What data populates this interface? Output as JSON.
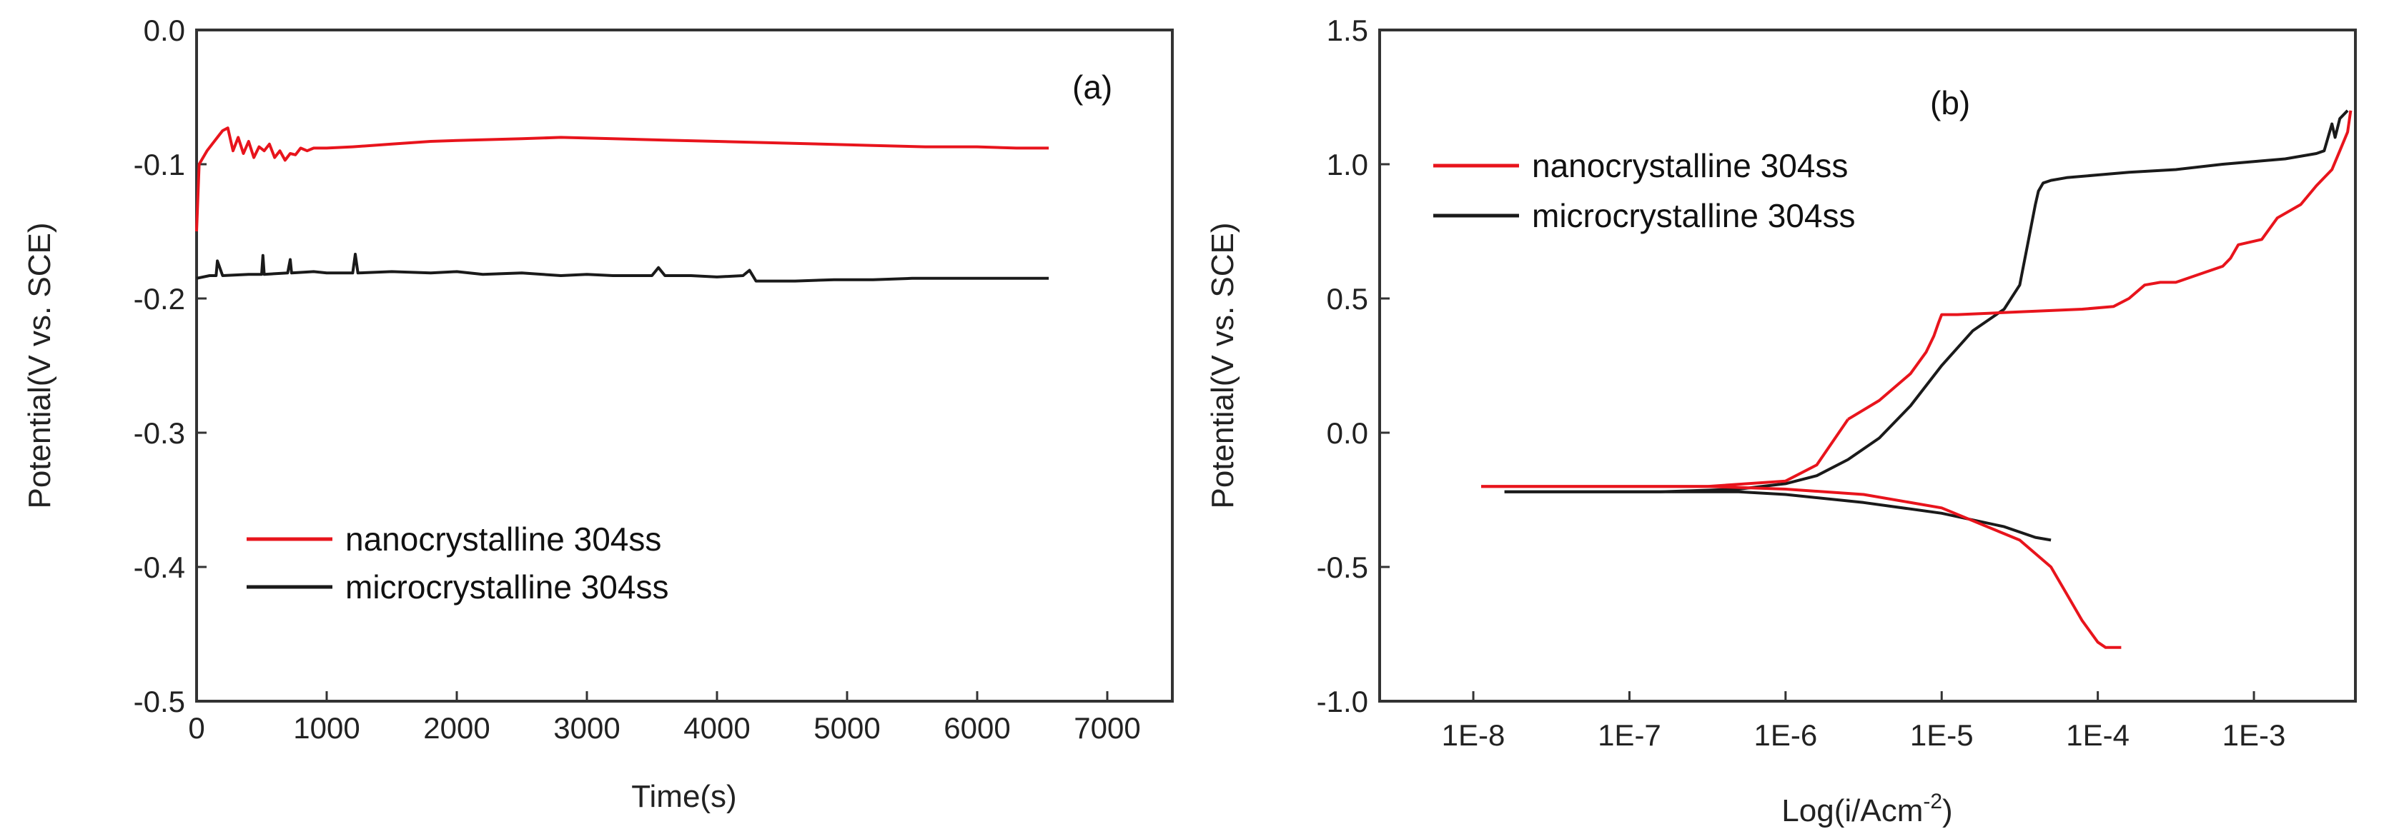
{
  "chart_data": [
    {
      "type": "line",
      "panel_label": "(a)",
      "xlabel": "Time(s)",
      "ylabel": "Potential(V vs. SCE)",
      "xlim": [
        0,
        7500
      ],
      "ylim": [
        -0.5,
        0.0
      ],
      "xticks": [
        0,
        1000,
        2000,
        3000,
        4000,
        5000,
        6000,
        7000
      ],
      "xtick_labels": [
        "0",
        "1000",
        "2000",
        "3000",
        "4000",
        "5000",
        "6000",
        "7000"
      ],
      "yticks": [
        0.0,
        -0.1,
        -0.2,
        -0.3,
        -0.4,
        -0.5
      ],
      "ytick_labels": [
        "0.0",
        "-0.1",
        "-0.2",
        "-0.3",
        "-0.4",
        "-0.5"
      ],
      "legend_position": "lower-left",
      "series": [
        {
          "name": "nanocrystalline 304ss",
          "color": "#e8141c",
          "x": [
            0,
            20,
            50,
            80,
            120,
            160,
            200,
            240,
            280,
            320,
            360,
            400,
            440,
            480,
            520,
            560,
            600,
            640,
            680,
            720,
            760,
            800,
            850,
            900,
            1000,
            1200,
            1500,
            1800,
            2100,
            2500,
            2800,
            3200,
            3600,
            4000,
            4400,
            4800,
            5200,
            5600,
            6000,
            6300,
            6550
          ],
          "y": [
            -0.15,
            -0.1,
            -0.095,
            -0.09,
            -0.085,
            -0.08,
            -0.075,
            -0.073,
            -0.09,
            -0.08,
            -0.092,
            -0.083,
            -0.095,
            -0.087,
            -0.09,
            -0.085,
            -0.095,
            -0.09,
            -0.097,
            -0.092,
            -0.093,
            -0.088,
            -0.09,
            -0.088,
            -0.088,
            -0.087,
            -0.085,
            -0.083,
            -0.082,
            -0.081,
            -0.08,
            -0.081,
            -0.082,
            -0.083,
            -0.084,
            -0.085,
            -0.086,
            -0.087,
            -0.087,
            -0.088,
            -0.088
          ]
        },
        {
          "name": "microcrystalline 304ss",
          "color": "#1a1a1a",
          "x": [
            0,
            100,
            150,
            160,
            200,
            400,
            500,
            510,
            520,
            700,
            720,
            730,
            900,
            1000,
            1200,
            1220,
            1240,
            1500,
            1800,
            2000,
            2200,
            2500,
            2800,
            3000,
            3200,
            3500,
            3550,
            3600,
            3800,
            4000,
            4200,
            4250,
            4300,
            4600,
            4900,
            5200,
            5500,
            5800,
            6200,
            6550
          ],
          "y": [
            -0.185,
            -0.183,
            -0.183,
            -0.172,
            -0.183,
            -0.182,
            -0.182,
            -0.168,
            -0.182,
            -0.181,
            -0.171,
            -0.181,
            -0.18,
            -0.181,
            -0.181,
            -0.167,
            -0.181,
            -0.18,
            -0.181,
            -0.18,
            -0.182,
            -0.181,
            -0.183,
            -0.182,
            -0.183,
            -0.183,
            -0.177,
            -0.183,
            -0.183,
            -0.184,
            -0.183,
            -0.179,
            -0.187,
            -0.187,
            -0.186,
            -0.186,
            -0.185,
            -0.185,
            -0.185,
            -0.185
          ]
        }
      ]
    },
    {
      "type": "line",
      "panel_label": "(b)",
      "xlabel": "Log(i/Acm",
      "xlabel_superscript": "-2",
      "xlabel_close": ")",
      "ylabel": "Potential(V vs. SCE)",
      "xscale": "log",
      "xlim_log10": [
        -8.6,
        -2.35
      ],
      "ylim": [
        -1.0,
        1.5
      ],
      "xticks_log10": [
        -8,
        -7,
        -6,
        -5,
        -4,
        -3
      ],
      "xtick_labels": [
        "1E-8",
        "1E-7",
        "1E-6",
        "1E-5",
        "1E-4",
        "1E-3"
      ],
      "yticks": [
        1.5,
        1.0,
        0.5,
        0.0,
        -0.5,
        -1.0
      ],
      "ytick_labels": [
        "1.5",
        "1.0",
        "0.5",
        "0.0",
        "-0.5",
        "-1.0"
      ],
      "legend_position": "upper-left",
      "series": [
        {
          "name": "nanocrystalline 304ss",
          "color": "#e8141c",
          "x_log10": [
            -5.6,
            -5.4,
            -5.2,
            -5.1,
            -5.05,
            -5.02,
            -5.0,
            -4.9,
            -4.7,
            -4.5,
            -4.3,
            -4.1,
            -3.9,
            -3.8,
            -3.7,
            -3.6,
            -3.5,
            -3.4,
            -3.3,
            -3.2,
            -3.15,
            -3.1,
            -2.95,
            -2.85,
            -2.7,
            -2.6,
            -2.5,
            -2.45,
            -2.4,
            -2.38
          ],
          "y": [
            0.05,
            0.12,
            0.22,
            0.3,
            0.36,
            0.41,
            0.44,
            0.44,
            0.445,
            0.45,
            0.455,
            0.46,
            0.47,
            0.5,
            0.55,
            0.56,
            0.56,
            0.58,
            0.6,
            0.62,
            0.65,
            0.7,
            0.72,
            0.8,
            0.85,
            0.92,
            0.98,
            1.05,
            1.12,
            1.2
          ],
          "cathodic_x_log10": [
            -7.95,
            -7.5,
            -7.0,
            -6.5,
            -6.0,
            -5.5,
            -5.0,
            -4.5,
            -4.3,
            -4.2,
            -4.1,
            -4.0,
            -3.95,
            -3.85
          ],
          "cathodic_y": [
            -0.2,
            -0.2,
            -0.2,
            -0.2,
            -0.21,
            -0.23,
            -0.28,
            -0.4,
            -0.5,
            -0.6,
            -0.7,
            -0.78,
            -0.8,
            -0.8
          ],
          "anodic_lower_x_log10": [
            -7.95,
            -7.5,
            -7.0,
            -6.5,
            -6.0,
            -5.8,
            -5.6
          ],
          "anodic_lower_y": [
            -0.2,
            -0.2,
            -0.2,
            -0.2,
            -0.18,
            -0.12,
            0.05
          ]
        },
        {
          "name": "microcrystalline 304ss",
          "color": "#1a1a1a",
          "x_log10": [
            -7.8,
            -7.3,
            -6.8,
            -6.3,
            -6.0,
            -5.8,
            -5.6,
            -5.4,
            -5.2,
            -5.0,
            -4.8,
            -4.6,
            -4.5,
            -4.45,
            -4.4,
            -4.38,
            -4.35,
            -4.3,
            -4.2,
            -4.0,
            -3.8,
            -3.5,
            -3.2,
            -3.0,
            -2.8,
            -2.6,
            -2.55,
            -2.5,
            -2.48,
            -2.45,
            -2.4
          ],
          "y": [
            -0.22,
            -0.22,
            -0.22,
            -0.21,
            -0.19,
            -0.16,
            -0.1,
            -0.02,
            0.1,
            0.25,
            0.38,
            0.46,
            0.55,
            0.7,
            0.85,
            0.9,
            0.93,
            0.94,
            0.95,
            0.96,
            0.97,
            0.98,
            1.0,
            1.01,
            1.02,
            1.04,
            1.05,
            1.15,
            1.1,
            1.17,
            1.2
          ],
          "cathodic_x_log10": [
            -7.8,
            -7.3,
            -6.8,
            -6.3,
            -6.0,
            -5.5,
            -5.0,
            -4.6,
            -4.4,
            -4.3
          ],
          "cathodic_y": [
            -0.22,
            -0.22,
            -0.22,
            -0.22,
            -0.23,
            -0.26,
            -0.3,
            -0.35,
            -0.39,
            -0.4
          ]
        }
      ]
    }
  ]
}
